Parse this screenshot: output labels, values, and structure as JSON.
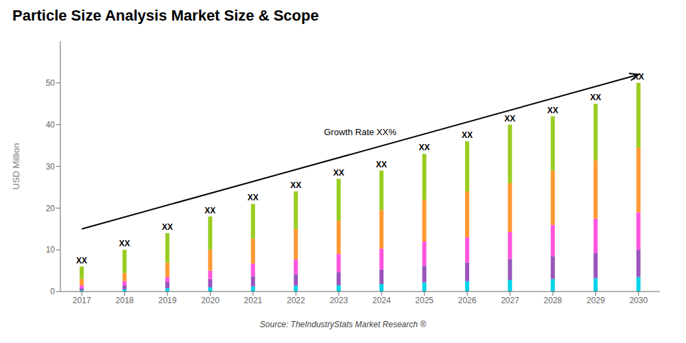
{
  "chart_data": {
    "type": "bar",
    "title": "Particle Size Analysis Market Size & Scope",
    "source": "Source: TheIndustryStats Market Research ®",
    "ylabel": "USD Million",
    "categories": [
      "2017",
      "2018",
      "2019",
      "2020",
      "2021",
      "2022",
      "2023",
      "2024",
      "2025",
      "2026",
      "2027",
      "2028",
      "2029",
      "2030"
    ],
    "series": [
      {
        "color": "#00d4e8",
        "values": [
          0.3,
          0.5,
          0.8,
          1.0,
          1.2,
          1.4,
          1.5,
          1.8,
          2.2,
          2.5,
          2.8,
          3.0,
          3.2,
          3.5
        ]
      },
      {
        "color": "#9955bb",
        "values": [
          0.5,
          1.0,
          1.5,
          2.0,
          2.5,
          2.8,
          3.2,
          3.5,
          4.0,
          4.5,
          5.0,
          5.5,
          6.0,
          6.5
        ]
      },
      {
        "color": "#ff55dd",
        "values": [
          0.7,
          1.0,
          1.2,
          2.0,
          3.0,
          3.5,
          4.3,
          5.0,
          5.8,
          6.0,
          6.5,
          7.5,
          8.3,
          9.0
        ]
      },
      {
        "color": "#ff9933",
        "values": [
          1.5,
          2.0,
          3.5,
          5.0,
          6.0,
          7.3,
          8.0,
          9.2,
          10.0,
          11.0,
          11.7,
          13.0,
          14.0,
          15.5
        ]
      },
      {
        "color": "#99cc22",
        "values": [
          3.0,
          5.5,
          7.0,
          8.0,
          8.3,
          9.0,
          10.0,
          9.5,
          11.0,
          12.0,
          14.0,
          13.0,
          13.5,
          15.5
        ]
      }
    ],
    "value_labels": [
      "XX",
      "XX",
      "XX",
      "XX",
      "XX",
      "XX",
      "XX",
      "XX",
      "XX",
      "XX",
      "XX",
      "XX",
      "XX",
      "XX"
    ],
    "stacked": true,
    "ylim": [
      0,
      60
    ],
    "yticks": [
      0,
      10,
      20,
      30,
      40,
      50
    ],
    "grid": false,
    "annotations": [
      {
        "text": "Growth Rate XX%",
        "from": [
          "2017",
          15
        ],
        "to": [
          "2030",
          52
        ]
      }
    ]
  }
}
